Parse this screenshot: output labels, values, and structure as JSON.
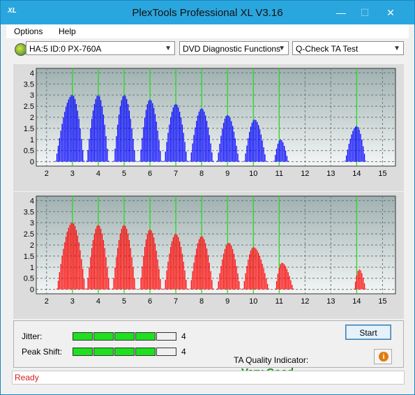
{
  "window": {
    "title": "PlexTools Professional XL V3.16",
    "icon": "XL"
  },
  "titlebar_buttons": {
    "minimize": "—",
    "maximize": "☐",
    "close": "✕"
  },
  "menu": {
    "options": "Options",
    "help": "Help"
  },
  "toolbar": {
    "drive": "HA:5 ID:0  PX-760A",
    "function": "DVD Diagnostic Functions",
    "test": "Q-Check TA Test"
  },
  "chart_data": [
    {
      "type": "bar",
      "name_hint": "land",
      "color": "#0000ff",
      "xlim": [
        1.6,
        15.5
      ],
      "ylim": [
        -0.2,
        4.2
      ],
      "xticks": [
        "2",
        "3",
        "4",
        "5",
        "6",
        "7",
        "8",
        "9",
        "10",
        "11",
        "12",
        "13",
        "14",
        "15"
      ],
      "yticks": [
        "0",
        "0.5",
        "1",
        "1.5",
        "2",
        "2.5",
        "3",
        "3.5",
        "4"
      ],
      "peaks": [
        {
          "center": 3.0,
          "height": 3.0,
          "left": 2.35,
          "right": 3.45
        },
        {
          "center": 4.0,
          "height": 3.0,
          "left": 3.55,
          "right": 4.4
        },
        {
          "center": 5.0,
          "height": 3.0,
          "left": 4.6,
          "right": 5.45
        },
        {
          "center": 6.0,
          "height": 2.8,
          "left": 5.6,
          "right": 6.45
        },
        {
          "center": 7.0,
          "height": 2.6,
          "left": 6.55,
          "right": 7.45
        },
        {
          "center": 8.0,
          "height": 2.4,
          "left": 7.55,
          "right": 8.45
        },
        {
          "center": 9.0,
          "height": 2.1,
          "left": 8.6,
          "right": 9.45
        },
        {
          "center": 10.05,
          "height": 1.9,
          "left": 9.65,
          "right": 10.5
        },
        {
          "center": 11.05,
          "height": 1.0,
          "left": 10.8,
          "right": 11.35
        },
        {
          "center": 14.0,
          "height": 1.6,
          "left": 13.55,
          "right": 14.35
        }
      ]
    },
    {
      "type": "bar",
      "name_hint": "groove",
      "color": "#ff0000",
      "xlim": [
        1.6,
        15.5
      ],
      "ylim": [
        -0.2,
        4.2
      ],
      "xticks": [
        "2",
        "3",
        "4",
        "5",
        "6",
        "7",
        "8",
        "9",
        "10",
        "11",
        "12",
        "13",
        "14",
        "15"
      ],
      "yticks": [
        "0",
        "0.5",
        "1",
        "1.5",
        "2",
        "2.5",
        "3",
        "3.5",
        "4"
      ],
      "peaks": [
        {
          "center": 3.0,
          "height": 3.0,
          "left": 2.4,
          "right": 3.5
        },
        {
          "center": 4.0,
          "height": 2.9,
          "left": 3.55,
          "right": 4.45
        },
        {
          "center": 5.0,
          "height": 2.9,
          "left": 4.55,
          "right": 5.45
        },
        {
          "center": 6.0,
          "height": 2.7,
          "left": 5.6,
          "right": 6.45
        },
        {
          "center": 7.0,
          "height": 2.5,
          "left": 6.55,
          "right": 7.45
        },
        {
          "center": 8.0,
          "height": 2.4,
          "left": 7.55,
          "right": 8.45
        },
        {
          "center": 9.05,
          "height": 2.1,
          "left": 8.6,
          "right": 9.5
        },
        {
          "center": 10.0,
          "height": 1.9,
          "left": 9.6,
          "right": 10.6
        },
        {
          "center": 11.1,
          "height": 1.2,
          "left": 10.85,
          "right": 11.55
        },
        {
          "center": 14.1,
          "height": 0.9,
          "left": 13.9,
          "right": 14.35
        }
      ]
    }
  ],
  "metrics": {
    "jitter": {
      "label": "Jitter:",
      "value": "4",
      "level": 4,
      "max": 5
    },
    "peak_shift": {
      "label": "Peak Shift:",
      "value": "4",
      "level": 4,
      "max": 5
    }
  },
  "ta_quality": {
    "label": "TA Quality Indicator:",
    "value": "Very Good"
  },
  "buttons": {
    "start": "Start",
    "info": "i"
  },
  "status": {
    "text": "Ready"
  }
}
